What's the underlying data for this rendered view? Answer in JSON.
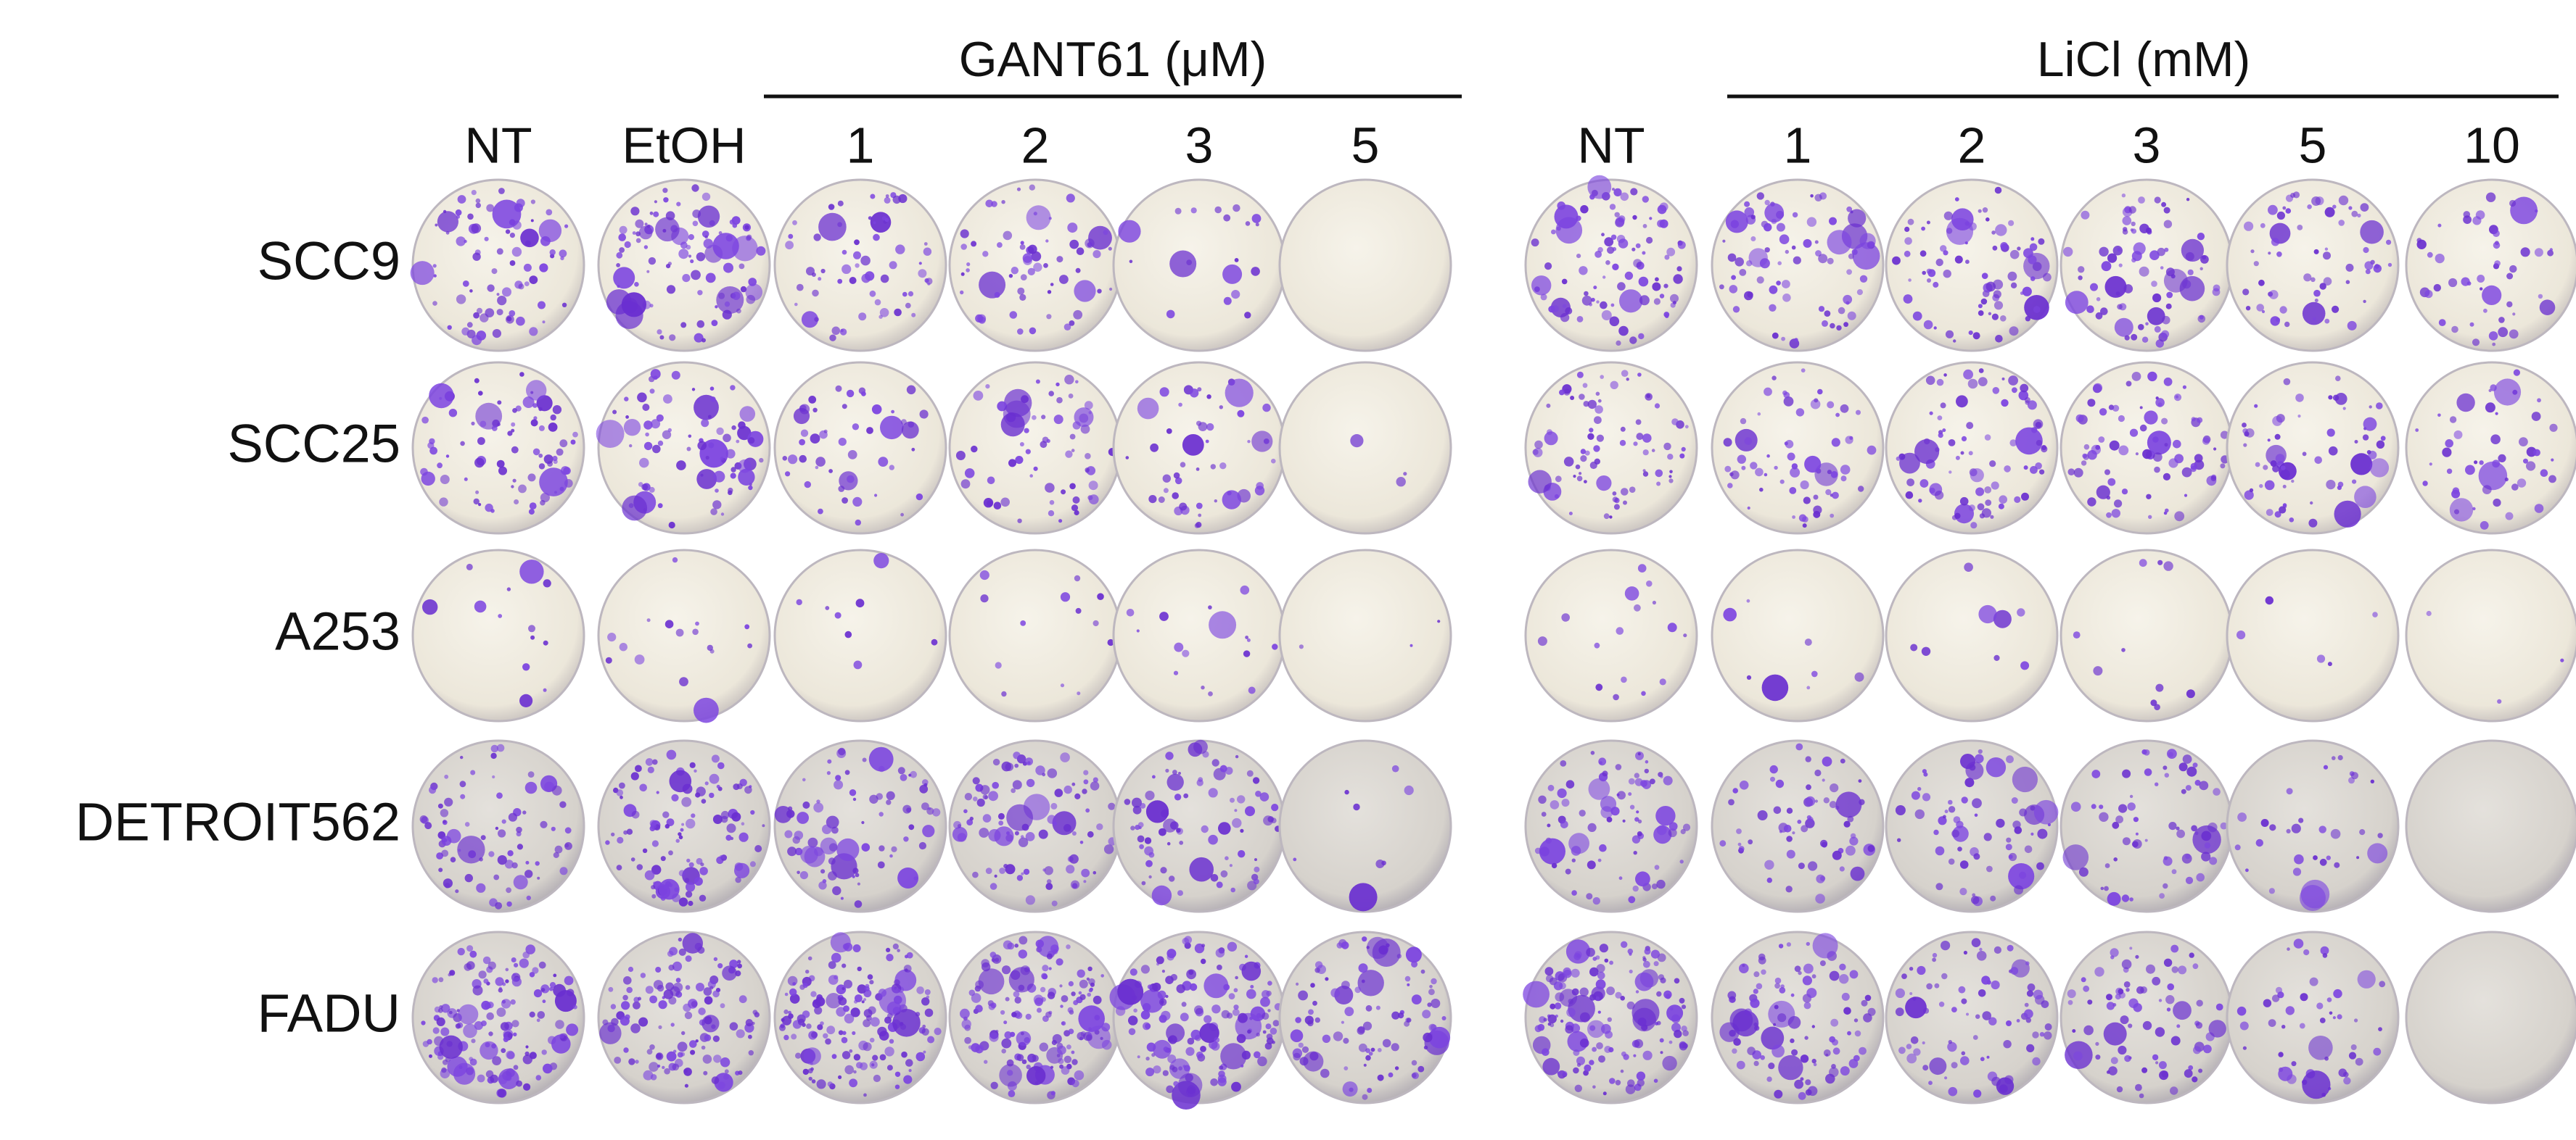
{
  "groups": [
    {
      "label": "GANT61 (μM)"
    },
    {
      "label": "LiCl (mM)"
    }
  ],
  "columns": [
    "NT",
    "EtOH",
    "1",
    "2",
    "3",
    "5",
    "NT",
    "1",
    "2",
    "3",
    "5",
    "10"
  ],
  "rows": [
    "SCC9",
    "SCC25",
    "A253",
    "DETROIT562",
    "FADU"
  ]
}
